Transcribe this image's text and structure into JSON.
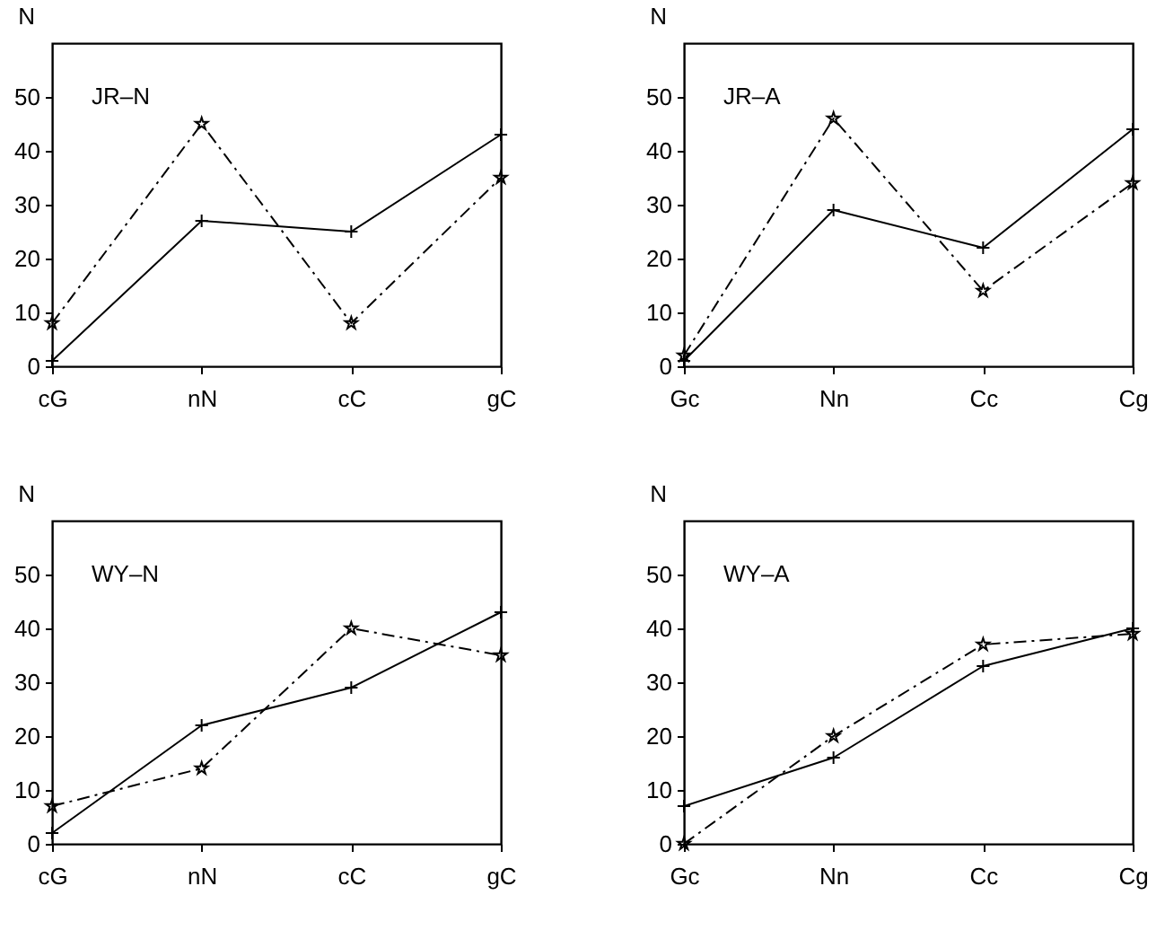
{
  "chart_data": [
    {
      "type": "line",
      "annotations": [
        "JR–N"
      ],
      "ylabel": "N",
      "categories": [
        "cG",
        "nN",
        "cC",
        "gC"
      ],
      "ylim": [
        0,
        60
      ],
      "yticks": [
        0,
        10,
        20,
        30,
        40,
        50
      ],
      "series": [
        {
          "color": "#000000",
          "marker": "cross",
          "line_style": "solid",
          "values": [
            1,
            27,
            25,
            43
          ]
        },
        {
          "color": "#000000",
          "marker": "star",
          "line_style": "dashed",
          "values": [
            8,
            45,
            8,
            35
          ]
        }
      ]
    },
    {
      "type": "line",
      "annotations": [
        "JR–A"
      ],
      "ylabel": "N",
      "categories": [
        "Gc",
        "Nn",
        "Cc",
        "Cg"
      ],
      "ylim": [
        0,
        60
      ],
      "yticks": [
        0,
        10,
        20,
        30,
        40,
        50
      ],
      "series": [
        {
          "color": "#000000",
          "marker": "cross",
          "line_style": "solid",
          "values": [
            1,
            29,
            22,
            44
          ]
        },
        {
          "color": "#000000",
          "marker": "star",
          "line_style": "dashed",
          "values": [
            2,
            46,
            14,
            34
          ]
        }
      ]
    },
    {
      "type": "line",
      "annotations": [
        "WY–N"
      ],
      "ylabel": "N",
      "categories": [
        "cG",
        "nN",
        "cC",
        "gC"
      ],
      "ylim": [
        0,
        60
      ],
      "yticks": [
        0,
        10,
        20,
        30,
        40,
        50
      ],
      "series": [
        {
          "color": "#000000",
          "marker": "cross",
          "line_style": "solid",
          "values": [
            2,
            22,
            29,
            43
          ]
        },
        {
          "color": "#000000",
          "marker": "star",
          "line_style": "dashed",
          "values": [
            7,
            14,
            40,
            35
          ]
        }
      ]
    },
    {
      "type": "line",
      "annotations": [
        "WY–A"
      ],
      "ylabel": "N",
      "categories": [
        "Gc",
        "Nn",
        "Cc",
        "Cg"
      ],
      "ylim": [
        0,
        60
      ],
      "yticks": [
        0,
        10,
        20,
        30,
        40,
        50
      ],
      "series": [
        {
          "color": "#000000",
          "marker": "cross",
          "line_style": "solid",
          "values": [
            7,
            16,
            33,
            40
          ]
        },
        {
          "color": "#000000",
          "marker": "star",
          "line_style": "dashed",
          "values": [
            0,
            20,
            37,
            39
          ]
        }
      ]
    }
  ]
}
